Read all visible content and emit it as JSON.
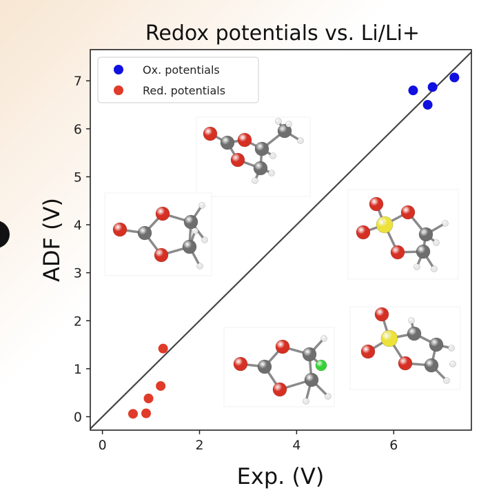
{
  "chart_data": {
    "type": "scatter",
    "title": "Redox potentials vs. Li/Li+",
    "xlabel": "Exp. (V)",
    "ylabel": "ADF (V)",
    "xlim": [
      -0.25,
      7.6
    ],
    "ylim": [
      -0.28,
      7.65
    ],
    "xticks": [
      0,
      2,
      4,
      6
    ],
    "yticks": [
      0,
      1,
      2,
      3,
      4,
      5,
      6,
      7
    ],
    "grid": false,
    "legend_position": "top-left",
    "reference_line": "y = x",
    "series": [
      {
        "name": "Ox. potentials",
        "color": "#1010e0",
        "points": [
          [
            6.4,
            6.8
          ],
          [
            6.8,
            6.87
          ],
          [
            6.7,
            6.5
          ],
          [
            7.25,
            7.07
          ]
        ]
      },
      {
        "name": "Red. potentials",
        "color": "#e03a2a",
        "points": [
          [
            0.63,
            0.06
          ],
          [
            0.9,
            0.07
          ],
          [
            0.95,
            0.38
          ],
          [
            1.2,
            0.64
          ],
          [
            1.25,
            1.42
          ]
        ]
      }
    ]
  },
  "molecule_insets": [
    {
      "name": "propylene-carbonate-top",
      "atoms": "C,O,H"
    },
    {
      "name": "ethylene-carbonate-left",
      "atoms": "C,O,H"
    },
    {
      "name": "sulfite-right-upper",
      "atoms": "S,C,O,H"
    },
    {
      "name": "fluoro-ethylene-carbonate-bottom",
      "atoms": "C,O,H,F"
    },
    {
      "name": "vinylene-sulfite-right-lower",
      "atoms": "S,C,O,H"
    }
  ],
  "atom_colors": {
    "C": "#6e6e6e",
    "O": "#d63024",
    "H": "#e8e8e8",
    "S": "#ece23a",
    "F": "#35d235"
  }
}
